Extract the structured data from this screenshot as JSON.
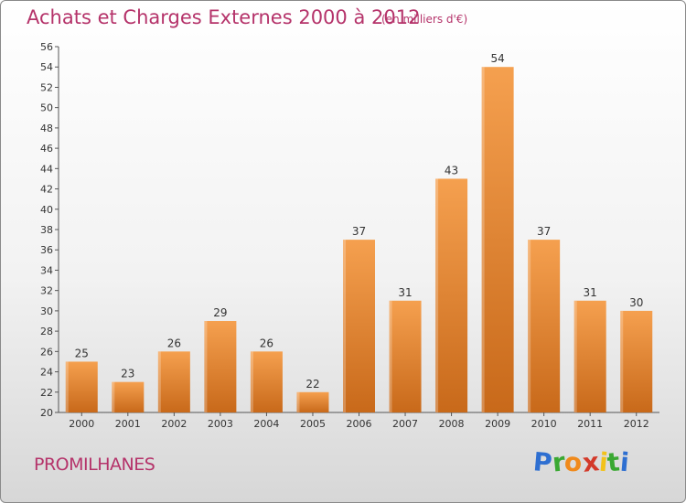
{
  "header": {
    "title": "Achats et Charges Externes 2000 à 2012",
    "subtitle": "(en milliers d'€)"
  },
  "footer": {
    "commune": "PROMILHANES",
    "logo": {
      "letters": [
        "P",
        "r",
        "o",
        "x",
        "i",
        "t",
        "i"
      ],
      "colors": [
        "#2e6fd1",
        "#3aa832",
        "#f08a1c",
        "#d33a2a",
        "#f2c21a",
        "#3aa832",
        "#2e6fd1"
      ]
    }
  },
  "chart_data": {
    "type": "bar",
    "categories": [
      "2000",
      "2001",
      "2002",
      "2003",
      "2004",
      "2005",
      "2006",
      "2007",
      "2008",
      "2009",
      "2010",
      "2011",
      "2012"
    ],
    "values": [
      25,
      23,
      26,
      29,
      26,
      22,
      37,
      31,
      43,
      54,
      37,
      31,
      30
    ],
    "title": "Achats et Charges Externes 2000 à 2012",
    "ylim": [
      20,
      56
    ],
    "yticks": [
      20,
      22,
      24,
      26,
      28,
      30,
      32,
      34,
      36,
      38,
      40,
      42,
      44,
      46,
      48,
      50,
      52,
      54,
      56
    ],
    "grid": false,
    "data_labels": true,
    "bar_color_top": "#f5a04f",
    "bar_color_bottom": "#c8691a"
  }
}
